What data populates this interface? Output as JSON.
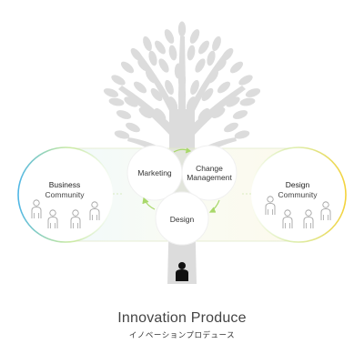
{
  "diagram": {
    "business_community": [
      "Business",
      "Community"
    ],
    "marketing": "Marketing",
    "change_management": [
      "Change",
      "Management"
    ],
    "design": "Design",
    "design_community": [
      "Design",
      "Community"
    ]
  },
  "caption": {
    "title": "Innovation Produce",
    "subtitle": "イノベーションプロデュース"
  },
  "colors": {
    "tree": "#dcdcdc",
    "person_silhouette": "#111111",
    "arrow": "#a8d86a",
    "left_ring_gradient": [
      "#4fb6e6",
      "#a9dd6a"
    ],
    "right_ring_gradient": [
      "#a9dd6a",
      "#f4d23a"
    ],
    "caption_text": "#444444"
  },
  "icons": [
    "tree-illustration",
    "person-silhouette-icon",
    "people-outline-icon",
    "cycle-arrow-icon"
  ]
}
